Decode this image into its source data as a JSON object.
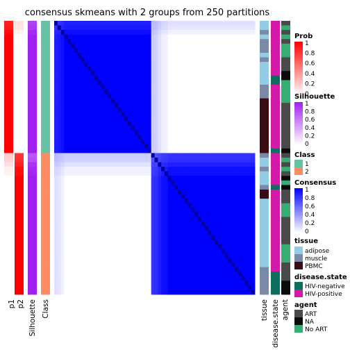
{
  "chart_data": {
    "type": "heatmap",
    "title": "consensus skmeans with 2 groups from 250 partitions",
    "n_samples": 60,
    "groups": [
      {
        "class": "1",
        "count": 29
      },
      {
        "class": "2",
        "count": 31
      }
    ],
    "column_annotations": {
      "p1": "p1",
      "p2": "p2",
      "silhouette": "Silhouette",
      "class": "Class"
    },
    "row_annotations": {
      "tissue": "tissue",
      "disease_state": "disease.state",
      "agent": "agent"
    },
    "legends": {
      "prob": {
        "title": "Prob",
        "ticks": [
          "1",
          "0.8",
          "0.6",
          "0.4",
          "0.2",
          "0"
        ],
        "low": "#ffffff",
        "high": "#ff0000"
      },
      "silhouette": {
        "title": "Silhouette",
        "ticks": [
          "1",
          "0.8",
          "0.6",
          "0.4",
          "0.2",
          "0"
        ],
        "low": "#ffffff",
        "high": "#a020f0"
      },
      "class": {
        "title": "Class",
        "items": [
          {
            "label": "1",
            "color": "#66c2a5"
          },
          {
            "label": "2",
            "color": "#fc8d62"
          }
        ]
      },
      "consensus": {
        "title": "Consensus",
        "ticks": [
          "1",
          "0.8",
          "0.6",
          "0.4",
          "0.2",
          "0"
        ],
        "low": "#ffffff",
        "high": "#0000ff"
      },
      "tissue": {
        "title": "tissue",
        "items": [
          {
            "label": "adipose",
            "color": "#94cce6"
          },
          {
            "label": "muscle",
            "color": "#7a8aa6"
          },
          {
            "label": "PBMC",
            "color": "#3a0c16"
          }
        ]
      },
      "disease_state": {
        "title": "disease.state",
        "items": [
          {
            "label": "HIV-negative",
            "color": "#0d6e5e"
          },
          {
            "label": "HIV-positive",
            "color": "#d21aa6"
          }
        ]
      },
      "agent": {
        "title": "agent",
        "items": [
          {
            "label": "ART",
            "color": "#4a4a4a"
          },
          {
            "label": "NA",
            "color": "#0b0b0b"
          },
          {
            "label": "No ART",
            "color": "#34ae72"
          }
        ]
      }
    },
    "samples": {
      "p1": [
        0.88,
        0.9,
        0.95,
        1,
        1,
        1,
        1,
        1,
        1,
        1,
        1,
        1,
        1,
        1,
        1,
        1,
        1,
        1,
        1,
        1,
        1,
        1,
        1,
        1,
        1,
        1,
        1,
        1,
        1,
        0.2,
        0.18,
        0.12,
        0.06,
        0.05,
        0,
        0,
        0,
        0,
        0,
        0,
        0,
        0,
        0,
        0,
        0,
        0,
        0,
        0,
        0,
        0,
        0,
        0,
        0,
        0,
        0,
        0,
        0,
        0,
        0,
        0
      ],
      "p2": [
        0.12,
        0.1,
        0.05,
        0,
        0,
        0,
        0,
        0,
        0,
        0,
        0,
        0,
        0,
        0,
        0,
        0,
        0,
        0,
        0,
        0,
        0,
        0,
        0,
        0,
        0,
        0,
        0,
        0,
        0,
        0.8,
        0.82,
        0.88,
        0.94,
        0.95,
        1,
        1,
        1,
        1,
        1,
        1,
        1,
        1,
        1,
        1,
        1,
        1,
        1,
        1,
        1,
        1,
        1,
        1,
        1,
        1,
        1,
        1,
        1,
        1,
        1,
        1
      ],
      "silhouette": [
        0.85,
        0.88,
        0.95,
        1,
        1,
        1,
        1,
        1,
        1,
        1,
        1,
        1,
        1,
        1,
        1,
        1,
        1,
        1,
        1,
        1,
        1,
        1,
        1,
        1,
        1,
        1,
        1,
        1,
        1,
        0.75,
        0.78,
        0.9,
        0.95,
        0.97,
        1,
        1,
        1,
        1,
        1,
        1,
        1,
        1,
        1,
        1,
        1,
        1,
        1,
        1,
        1,
        1,
        1,
        1,
        1,
        1,
        1,
        1,
        1,
        1,
        1,
        1
      ],
      "class": [
        1,
        1,
        1,
        1,
        1,
        1,
        1,
        1,
        1,
        1,
        1,
        1,
        1,
        1,
        1,
        1,
        1,
        1,
        1,
        1,
        1,
        1,
        1,
        1,
        1,
        1,
        1,
        1,
        1,
        2,
        2,
        2,
        2,
        2,
        2,
        2,
        2,
        2,
        2,
        2,
        2,
        2,
        2,
        2,
        2,
        2,
        2,
        2,
        2,
        2,
        2,
        2,
        2,
        2,
        2,
        2,
        2,
        2,
        2,
        2
      ],
      "tissue": [
        1,
        1,
        2,
        1,
        2,
        2,
        2,
        1,
        2,
        1,
        1,
        1,
        1,
        1,
        2,
        2,
        2,
        3,
        3,
        3,
        3,
        3,
        3,
        3,
        3,
        3,
        3,
        3,
        3,
        2,
        1,
        1,
        2,
        1,
        1,
        1,
        2,
        3,
        3,
        1,
        1,
        1,
        1,
        1,
        1,
        1,
        1,
        1,
        1,
        1,
        1,
        1,
        1,
        1,
        2,
        2,
        2,
        2,
        2,
        2
      ],
      "disease_state": [
        2,
        2,
        2,
        2,
        2,
        2,
        2,
        2,
        2,
        2,
        2,
        2,
        1,
        1,
        2,
        2,
        2,
        2,
        2,
        2,
        2,
        2,
        2,
        2,
        2,
        2,
        2,
        2,
        1,
        2,
        2,
        2,
        2,
        2,
        2,
        2,
        1,
        2,
        2,
        2,
        2,
        2,
        2,
        2,
        2,
        2,
        2,
        2,
        2,
        2,
        2,
        2,
        2,
        2,
        2,
        1,
        1,
        1,
        1,
        1
      ],
      "agent": [
        1,
        3,
        1,
        3,
        1,
        3,
        3,
        3,
        1,
        1,
        1,
        2,
        2,
        3,
        3,
        3,
        3,
        3,
        1,
        1,
        1,
        1,
        1,
        1,
        1,
        1,
        1,
        1,
        2,
        1,
        3,
        1,
        3,
        1,
        2,
        3,
        2,
        1,
        1,
        1,
        3,
        3,
        3,
        1,
        1,
        1,
        1,
        1,
        1,
        3,
        3,
        3,
        3,
        1,
        1,
        1,
        1,
        2,
        2,
        2
      ]
    }
  }
}
